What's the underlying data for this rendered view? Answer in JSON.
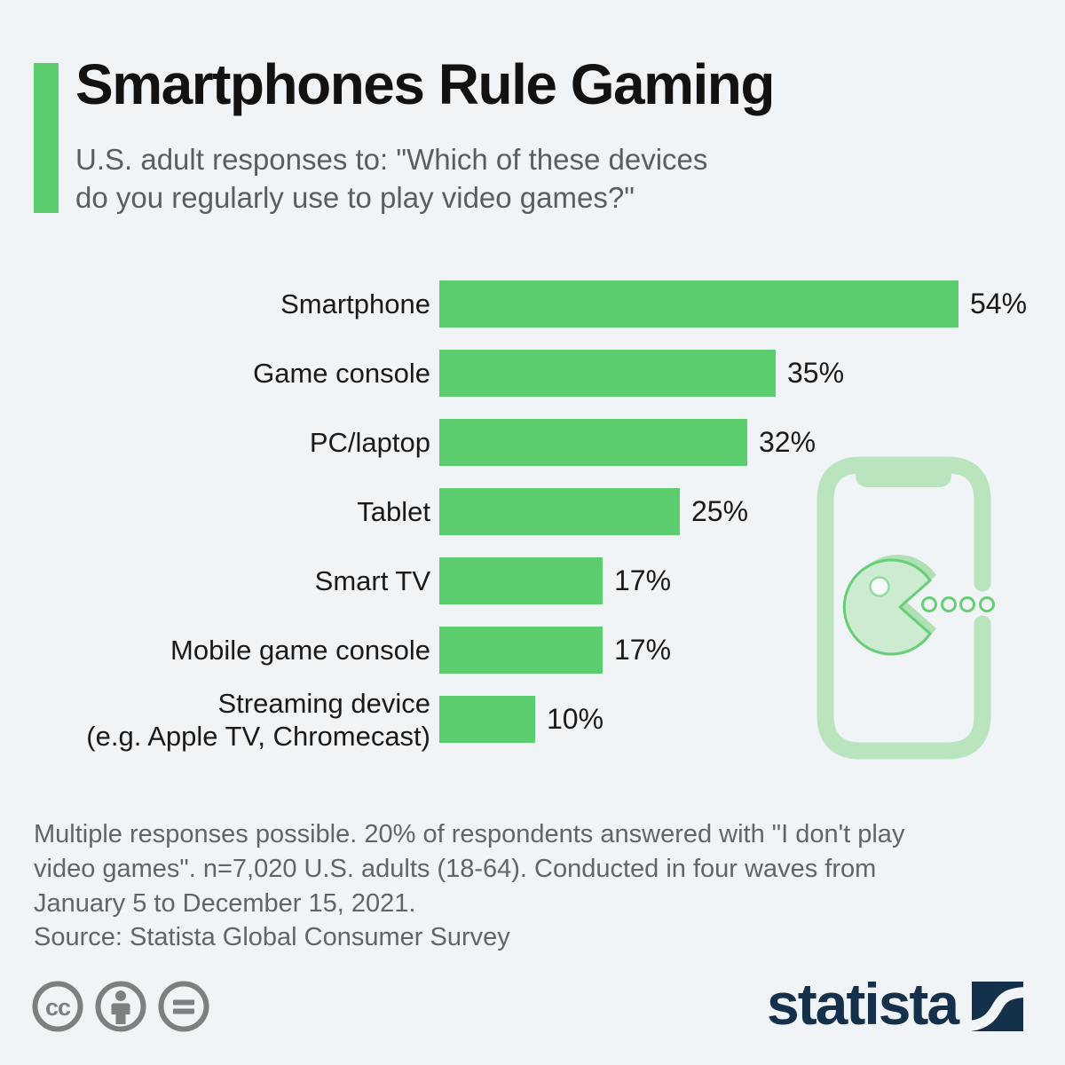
{
  "header": {
    "title": "Smartphones Rule Gaming",
    "subtitle": "U.S. adult responses to: \"Which of these devices\ndo you regularly use to play video games?\"",
    "accent_color": "#5ccd6f"
  },
  "chart_data": {
    "type": "bar",
    "orientation": "horizontal",
    "categories": [
      "Smartphone",
      "Game console",
      "PC/laptop",
      "Tablet",
      "Smart TV",
      "Mobile game console",
      "Streaming device\n(e.g. Apple TV, Chromecast)"
    ],
    "values": [
      54,
      35,
      32,
      25,
      17,
      17,
      10
    ],
    "value_suffix": "%",
    "bar_color": "#5ccd6f",
    "xlim": [
      0,
      54
    ],
    "grid": false,
    "data_labels": "outside-end"
  },
  "illustration": {
    "name": "smartphone-with-pacman",
    "frame_color": "#bae4be",
    "pacman_fill": "#cdebd0",
    "pacman_stroke": "#66cf75",
    "shadow_color": "#b2e0b6"
  },
  "footer": {
    "note": "Multiple responses possible. 20% of respondents answered with \"I don't play\nvideo games\". n=7,020 U.S. adults (18-64). Conducted in four waves from\nJanuary 5 to December 15, 2021.",
    "source": "Source: Statista Global Consumer Survey",
    "license_icons": [
      "cc",
      "attribution",
      "equals"
    ],
    "license_icon_color": "#7b8181"
  },
  "branding": {
    "logo_text": "statista",
    "logo_color": "#15304b"
  }
}
